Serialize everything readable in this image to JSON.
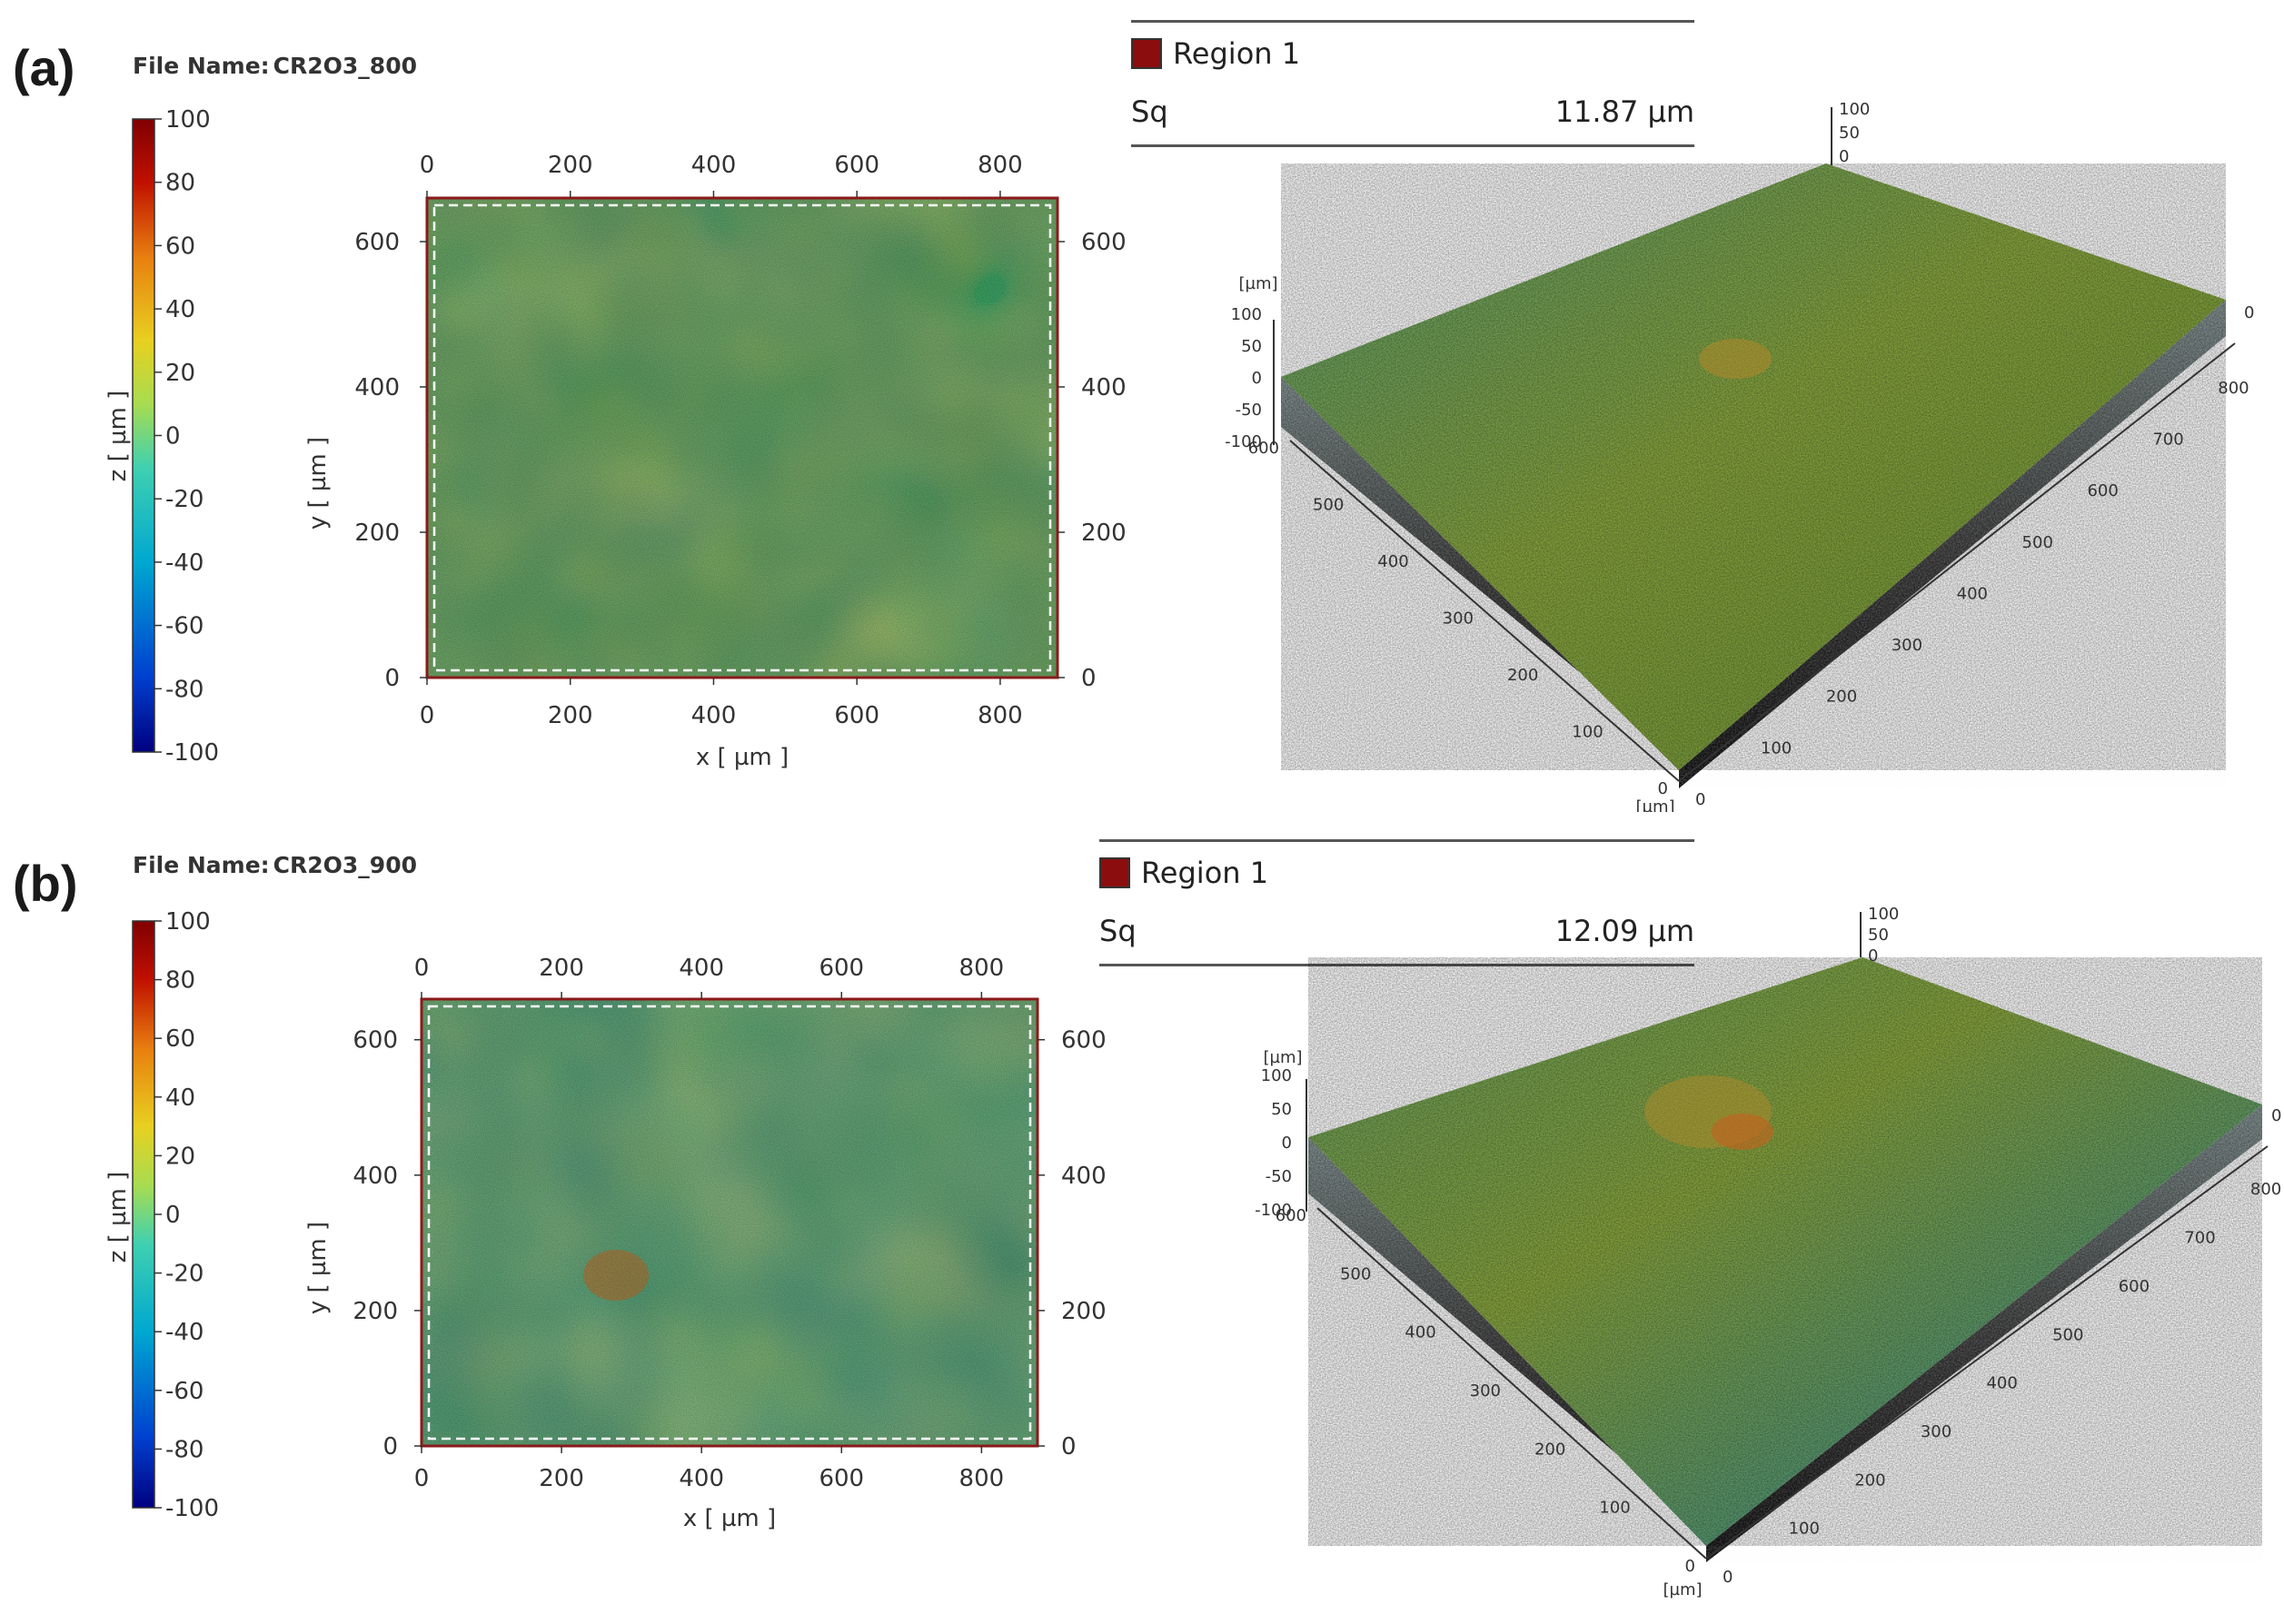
{
  "figure": {
    "panels": [
      {
        "label": "(a)",
        "file_name_label": "File Name:",
        "file_name": "CR2O3_800",
        "region_name": "Region 1",
        "region_color": "#8b0d0d",
        "param_name": "Sq",
        "param_value": "11.87 µm",
        "colorbar": {
          "title": "z [ µm ]",
          "ticks": [
            "100",
            "80",
            "60",
            "40",
            "20",
            "0",
            "-20",
            "-40",
            "-60",
            "-80",
            "-100"
          ]
        },
        "map2d": {
          "x_ticks": [
            "0",
            "200",
            "400",
            "600",
            "800"
          ],
          "y_ticks": [
            "0",
            "200",
            "400",
            "600"
          ],
          "xlabel": "x [ µm ]",
          "ylabel": "y [ µm ]"
        },
        "view3d": {
          "z_unit": "[µm]",
          "z_ticks": [
            "100",
            "50",
            "0",
            "-50",
            "-100"
          ],
          "top_ticks": [
            "100",
            "50",
            "0"
          ],
          "y_ticks": [
            "600",
            "500",
            "400",
            "300",
            "200",
            "100",
            "0"
          ],
          "x_ticks": [
            "0",
            "100",
            "200",
            "300",
            "400",
            "500",
            "600",
            "700",
            "800"
          ],
          "corner_unit": "[µm]",
          "far_zero": "0"
        }
      },
      {
        "label": "(b)",
        "file_name_label": "File Name:",
        "file_name": "CR2O3_900",
        "region_name": "Region 1",
        "region_color": "#8b0d0d",
        "param_name": "Sq",
        "param_value": "12.09 µm",
        "colorbar": {
          "title": "z [ µm ]",
          "ticks": [
            "100",
            "80",
            "60",
            "40",
            "20",
            "0",
            "-20",
            "-40",
            "-60",
            "-80",
            "-100"
          ]
        },
        "map2d": {
          "x_ticks": [
            "0",
            "200",
            "400",
            "600",
            "800"
          ],
          "y_ticks": [
            "0",
            "200",
            "400",
            "600"
          ],
          "xlabel": "x [ µm ]",
          "ylabel": "y [ µm ]"
        },
        "view3d": {
          "z_unit": "[µm]",
          "z_ticks": [
            "100",
            "50",
            "0",
            "-50",
            "-100"
          ],
          "top_ticks": [
            "100",
            "50",
            "0"
          ],
          "y_ticks": [
            "600",
            "500",
            "400",
            "300",
            "200",
            "100",
            "0"
          ],
          "x_ticks": [
            "0",
            "100",
            "200",
            "300",
            "400",
            "500",
            "600",
            "700",
            "800"
          ],
          "corner_unit": "[µm]",
          "far_zero": "0"
        }
      }
    ]
  },
  "colors": {
    "colorbar_stops": [
      "#00007f",
      "#0050d0",
      "#00a8c8",
      "#40c8a0",
      "#b8d840",
      "#e8c020",
      "#e07010",
      "#b00000",
      "#7f0000"
    ],
    "surface_base": "#6a9a3c",
    "surface_teal": "#3a98a0",
    "surface_orange": "#c8902a",
    "roi_dash": "#ffffff",
    "roi_border": "#8b1a1a"
  }
}
